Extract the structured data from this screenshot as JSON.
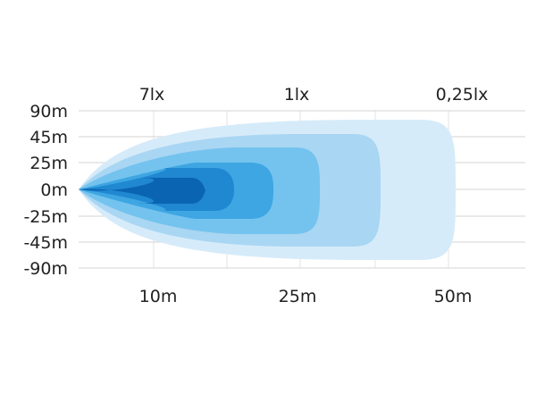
{
  "top_labels": [
    "7lx",
    "1lx",
    "0,25lx"
  ],
  "y_labels": [
    "90m",
    "45m",
    "25m",
    "0m",
    "-25m",
    "-45m",
    "-90m"
  ],
  "x_labels": [
    "10m",
    "25m",
    "50m"
  ],
  "beam_colors": [
    "#d6ebf9",
    "#a9d6f3",
    "#74c3ee",
    "#3ea6e2",
    "#2088d0",
    "#0b64b1"
  ],
  "grid_color": "#dcdcdc"
}
